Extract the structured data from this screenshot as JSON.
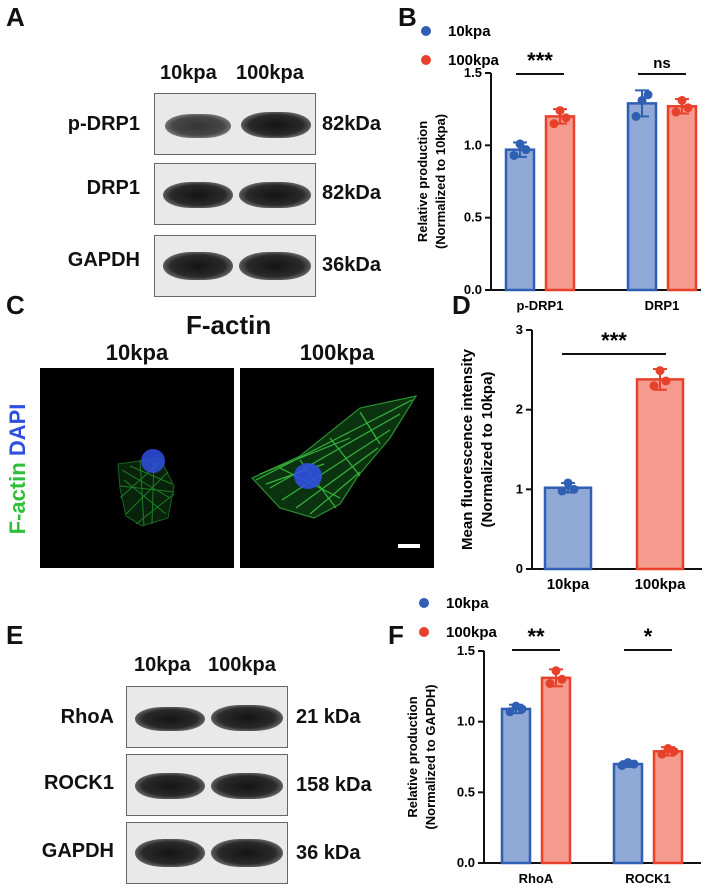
{
  "panels": {
    "a": "A",
    "b": "B",
    "c": "C",
    "d": "D",
    "e": "E",
    "f": "F"
  },
  "blot_a": {
    "conditions": [
      "10kpa",
      "100kpa"
    ],
    "rows": [
      {
        "label": "p-DRP1",
        "mw": "82kDa"
      },
      {
        "label": "DRP1",
        "mw": "82kDa"
      },
      {
        "label": "GAPDH",
        "mw": "36kDa"
      }
    ]
  },
  "blot_e": {
    "conditions": [
      "10kpa",
      "100kpa"
    ],
    "rows": [
      {
        "label": "RhoA",
        "mw": "21 kDa"
      },
      {
        "label": "ROCK1",
        "mw": "158 kDa"
      },
      {
        "label": "GAPDH",
        "mw": "36 kDa"
      }
    ]
  },
  "micro": {
    "title": "F-actin",
    "conditions": [
      "10kpa",
      "100kpa"
    ],
    "side_label_green": "F-actin",
    "side_label_blue": "DAPI"
  },
  "colors": {
    "blue_edge": "#2f5fb3",
    "blue_fill": "#8fa8d6",
    "red_edge": "#e8412b",
    "red_fill": "#f59a8e",
    "green_stain": "#2fbf3a",
    "blue_stain": "#2f4fe0"
  },
  "chart_data": [
    {
      "panel": "B",
      "type": "bar",
      "categories": [
        "p-DRP1",
        "DRP1"
      ],
      "series": [
        {
          "name": "10kpa",
          "values": [
            0.97,
            1.29
          ],
          "errors": [
            0.05,
            0.09
          ],
          "points": [
            [
              0.93,
              1.01,
              0.97
            ],
            [
              1.2,
              1.31,
              1.35
            ]
          ]
        },
        {
          "name": "100kpa",
          "values": [
            1.2,
            1.27
          ],
          "errors": [
            0.05,
            0.05
          ],
          "points": [
            [
              1.15,
              1.24,
              1.19
            ],
            [
              1.23,
              1.31,
              1.26
            ]
          ]
        }
      ],
      "ylabel": "Relative production (Normalized to 10kpa)",
      "ylim": [
        0,
        1.5
      ],
      "yticks": [
        "0.0",
        "0.5",
        "1.0",
        "1.5"
      ],
      "significance": [
        "***",
        "ns"
      ],
      "legend": "top-left"
    },
    {
      "panel": "D",
      "type": "bar",
      "categories": [
        "10kpa",
        "100kpa"
      ],
      "series": [
        {
          "values": [
            1.02,
            2.38
          ],
          "errors": [
            0.06,
            0.13
          ],
          "points": [
            [
              0.98,
              1.08,
              1.0
            ],
            [
              2.3,
              2.49,
              2.36
            ]
          ]
        }
      ],
      "ylabel": "Mean fluorescence intensity (Normalized to 10kpa)",
      "ylim": [
        0,
        3
      ],
      "yticks": [
        "0",
        "1",
        "2",
        "3"
      ],
      "significance": [
        "***"
      ]
    },
    {
      "panel": "F",
      "type": "bar",
      "categories": [
        "RhoA",
        "ROCK1"
      ],
      "series": [
        {
          "name": "10kpa",
          "values": [
            1.09,
            0.7
          ],
          "errors": [
            0.03,
            0.02
          ],
          "points": [
            [
              1.07,
              1.11,
              1.09
            ],
            [
              0.69,
              0.71,
              0.7
            ]
          ]
        },
        {
          "name": "100kpa",
          "values": [
            1.31,
            0.79
          ],
          "errors": [
            0.06,
            0.03
          ],
          "points": [
            [
              1.27,
              1.36,
              1.3
            ],
            [
              0.77,
              0.81,
              0.79
            ]
          ]
        }
      ],
      "ylabel": "Relative production (Normalized to GAPDH)",
      "ylim": [
        0,
        1.5
      ],
      "yticks": [
        "0.0",
        "0.5",
        "1.0",
        "1.5"
      ],
      "significance": [
        "**",
        "*"
      ],
      "legend": "top-left"
    }
  ]
}
